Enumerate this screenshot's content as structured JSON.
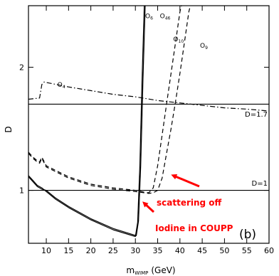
{
  "chart_data": {
    "type": "line",
    "xlabel": "m",
    "xlabel_sub": "WIMP",
    "xlabel_unit": "(GeV)",
    "ylabel": "D",
    "xlim": [
      6,
      60
    ],
    "ylim": [
      0.57,
      2.5
    ],
    "xticks": [
      10,
      15,
      20,
      25,
      30,
      35,
      40,
      45,
      50,
      55,
      60
    ],
    "yticks": [
      1,
      2
    ],
    "grid": false,
    "panel_label": "(b)",
    "reference_lines": [
      {
        "name": "D=1.7",
        "y": 1.7
      },
      {
        "name": "D=1",
        "y": 1.0
      }
    ],
    "series": [
      {
        "name": "O4",
        "style": "dashdot",
        "x": [
          6,
          8.5,
          9,
          9.5,
          15,
          20,
          25,
          30,
          35,
          40,
          45,
          50,
          55,
          60
        ],
        "y": [
          1.74,
          1.75,
          1.86,
          1.88,
          1.84,
          1.81,
          1.78,
          1.76,
          1.73,
          1.71,
          1.69,
          1.67,
          1.66,
          1.645
        ]
      },
      {
        "name": "O6",
        "style": "solid",
        "x": [
          6,
          7,
          8,
          9,
          10,
          12,
          15,
          20,
          25,
          30,
          30.5,
          31,
          31.5,
          32,
          32.3
        ],
        "y": [
          1.12,
          1.08,
          1.04,
          1.02,
          0.99,
          0.93,
          0.86,
          0.76,
          0.68,
          0.625,
          0.74,
          1.2,
          1.9,
          2.5,
          2.6
        ]
      },
      {
        "name": "O46",
        "style": "solid",
        "x": [
          6,
          7,
          8,
          9,
          10,
          12,
          15,
          20,
          25,
          30.2,
          30.7,
          31.2,
          31.7,
          32.2,
          32.5
        ],
        "y": [
          1.11,
          1.07,
          1.03,
          1.01,
          1.0,
          0.94,
          0.87,
          0.77,
          0.69,
          0.632,
          0.75,
          1.2,
          1.9,
          2.5,
          2.6
        ]
      },
      {
        "name": "O10",
        "style": "dashed",
        "x": [
          6,
          7,
          8,
          8.5,
          9,
          10,
          15,
          20,
          25,
          30,
          32,
          33,
          34,
          35,
          36,
          37,
          38,
          39,
          40,
          41
        ],
        "y": [
          1.31,
          1.27,
          1.24,
          1.23,
          1.27,
          1.2,
          1.11,
          1.05,
          1.02,
          1.0,
          0.985,
          0.98,
          1.02,
          1.2,
          1.45,
          1.7,
          1.95,
          2.2,
          2.45,
          2.6
        ]
      },
      {
        "name": "O9",
        "style": "dashed",
        "x": [
          6,
          7,
          8,
          8.5,
          9,
          10,
          15,
          20,
          25,
          30,
          33,
          34,
          35,
          36,
          37,
          38,
          39,
          40,
          41,
          42,
          43
        ],
        "y": [
          1.3,
          1.26,
          1.23,
          1.22,
          1.26,
          1.19,
          1.1,
          1.04,
          1.01,
          0.99,
          0.975,
          0.98,
          1.0,
          1.1,
          1.3,
          1.5,
          1.72,
          1.95,
          2.2,
          2.45,
          2.6
        ]
      }
    ],
    "curve_labels": [
      {
        "text": "O4",
        "x": 12.5,
        "y": 1.84
      },
      {
        "text": "O6",
        "x": 32.2,
        "y": 2.4
      },
      {
        "text": "O46",
        "x": 35.5,
        "y": 2.4
      },
      {
        "text": "O10",
        "x": 38.5,
        "y": 2.21
      },
      {
        "text": "O9",
        "x": 44.5,
        "y": 2.16
      }
    ],
    "annotation": {
      "line1": "scattering  off",
      "line2": "Iodine in COUPP",
      "color": "#ff0000"
    }
  }
}
